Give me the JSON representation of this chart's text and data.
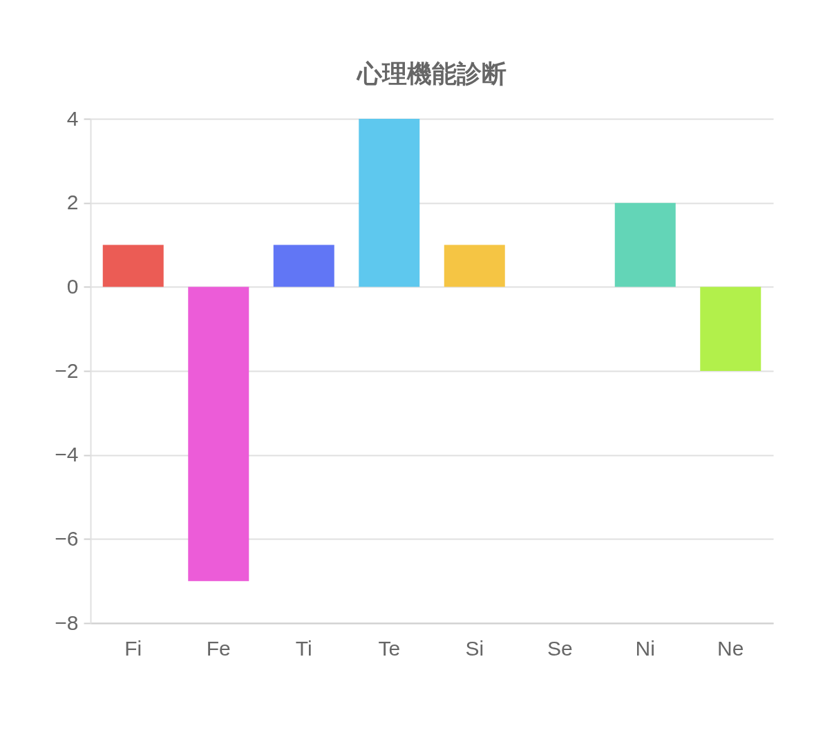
{
  "chart_data": {
    "type": "bar",
    "title": "心理機能診断",
    "categories": [
      "Fi",
      "Fe",
      "Ti",
      "Te",
      "Si",
      "Se",
      "Ni",
      "Ne"
    ],
    "values": [
      1,
      -7,
      1,
      4,
      1,
      0,
      2,
      -2
    ],
    "colors": [
      "#eb5c55",
      "#ec5cd8",
      "#6176f5",
      "#5ec8ee",
      "#f5c544",
      "#ff9f40",
      "#63d5b7",
      "#b2f04b"
    ],
    "ylim": [
      -8,
      4
    ],
    "yticks": [
      -8,
      -6,
      -4,
      -2,
      0,
      2,
      4
    ],
    "grid": "y"
  }
}
